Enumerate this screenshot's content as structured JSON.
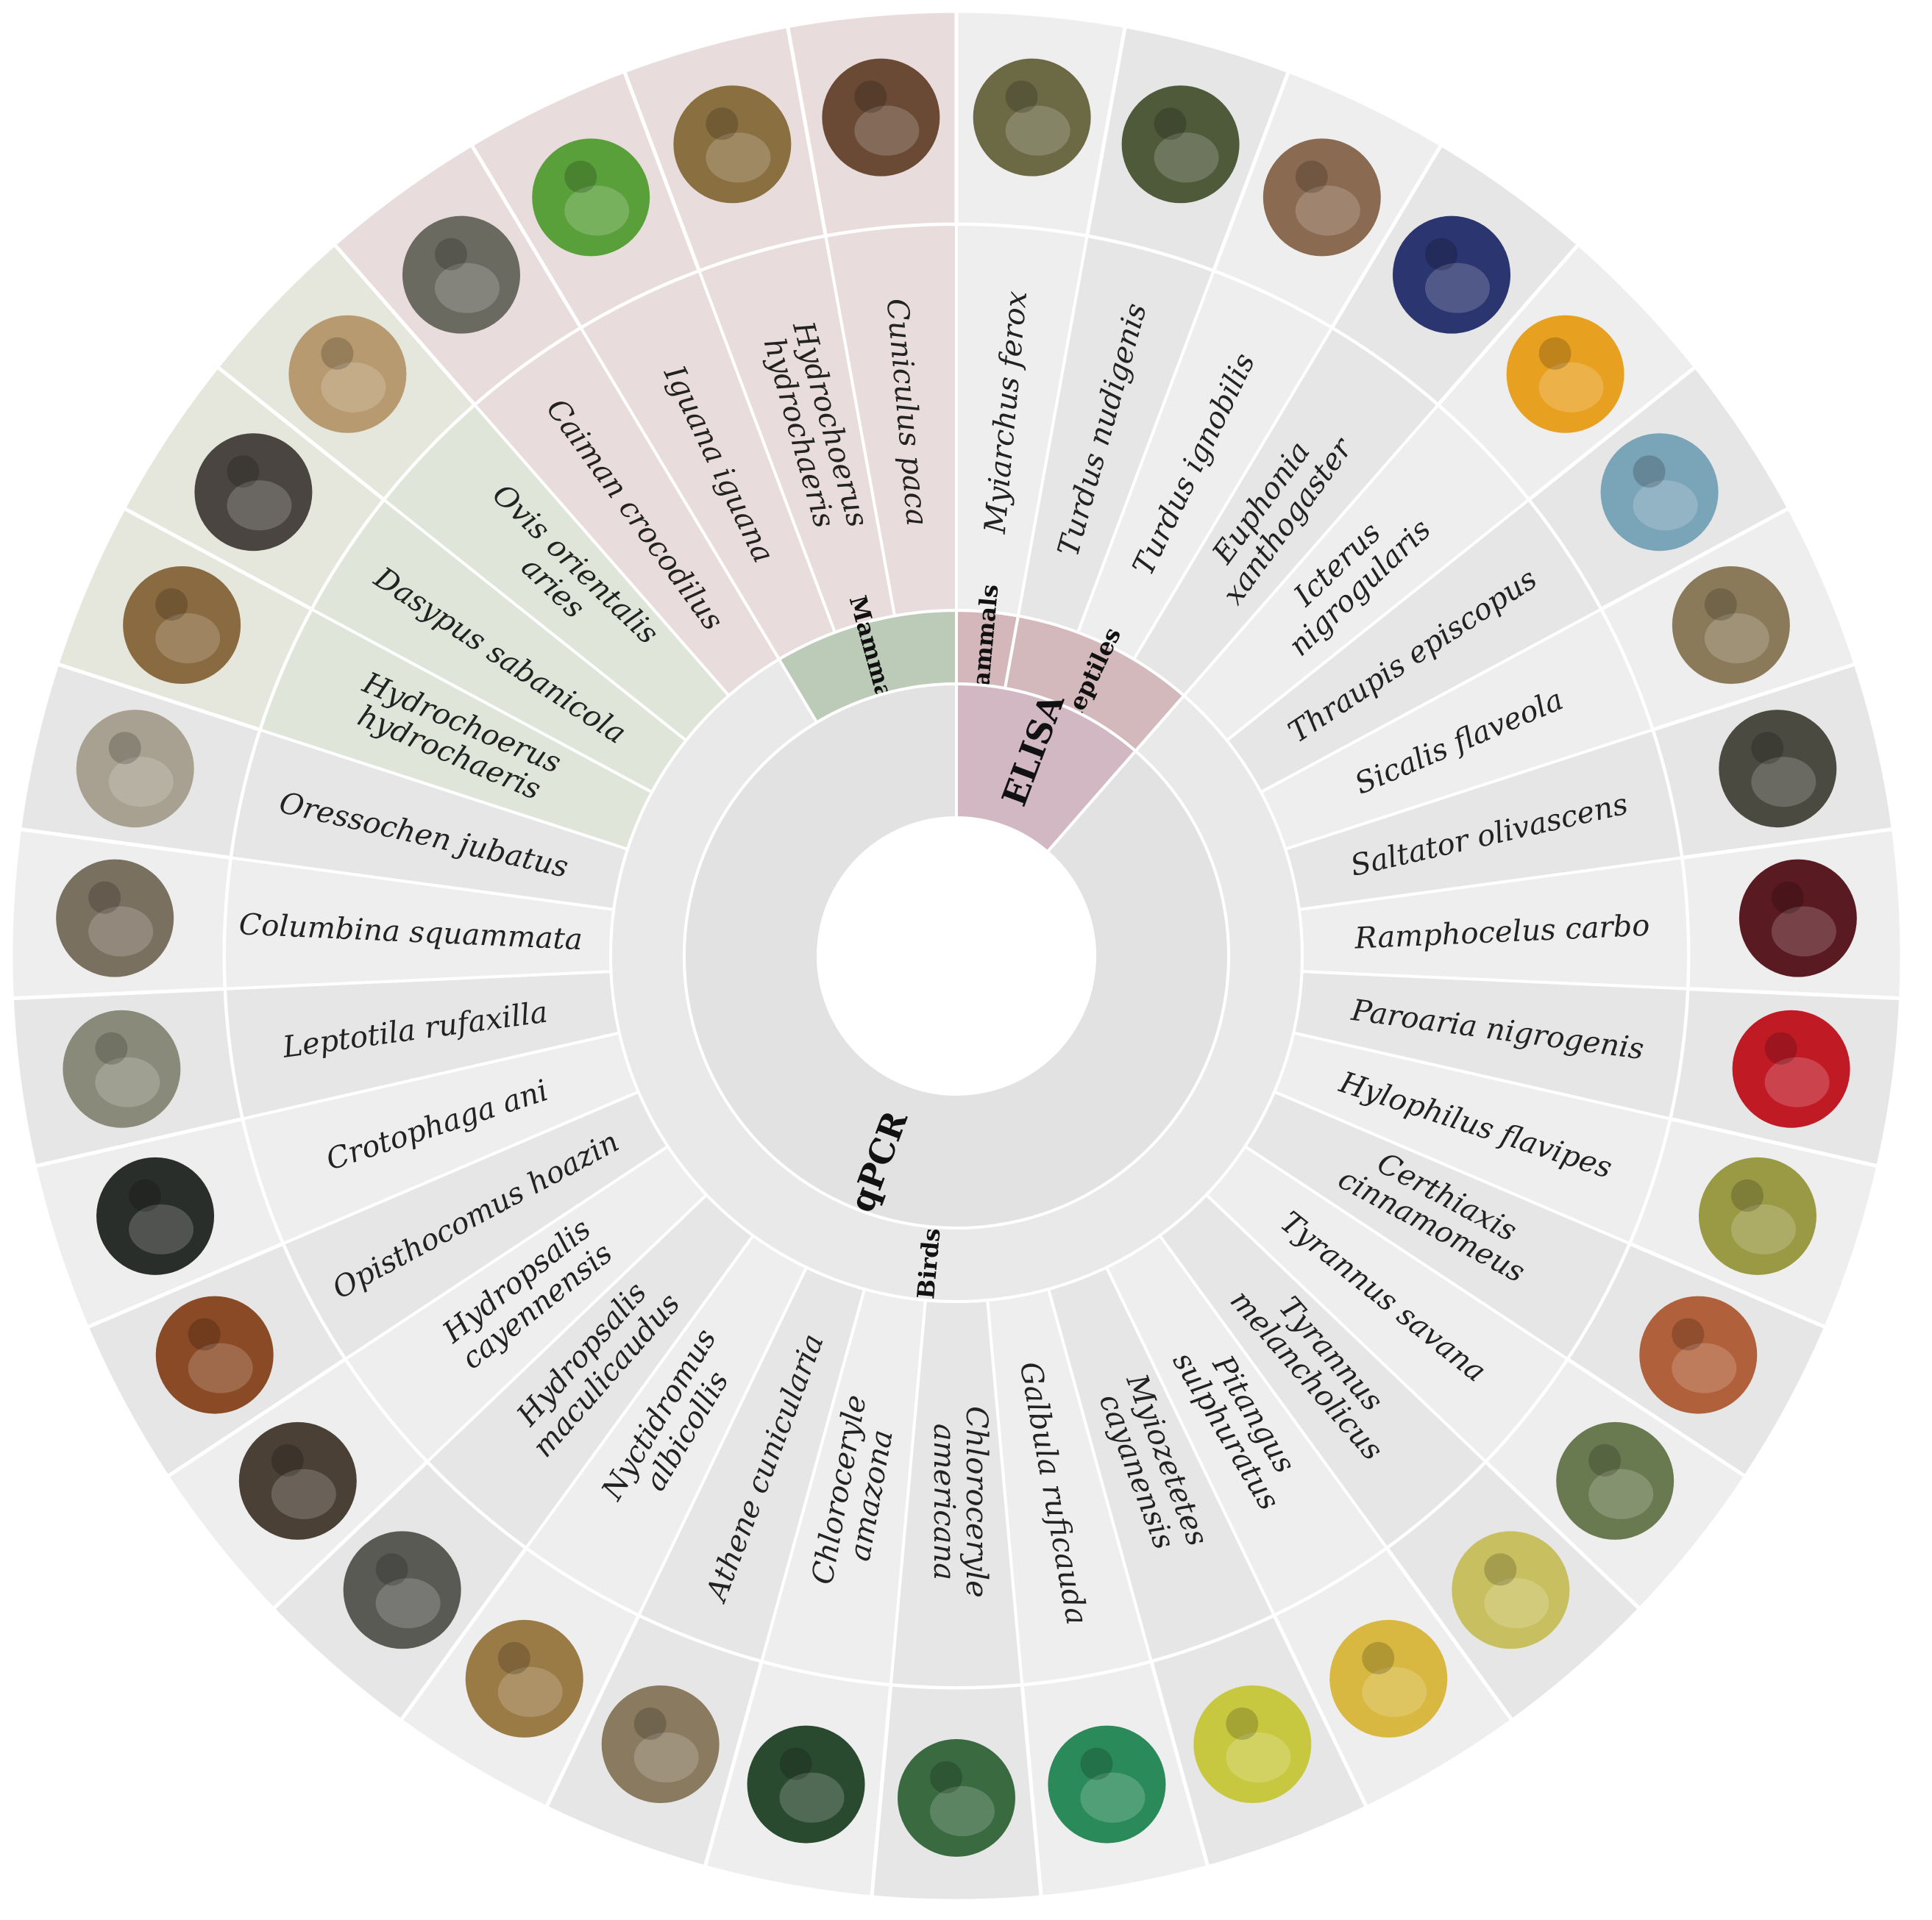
{
  "colors": {
    "ring_light": "#eeeeee",
    "ring_alt": "#e6e6e6",
    "reptile_outer": "#e9dcdc",
    "reptile_group": "#d4b9bc",
    "elisa_mammal_group": "#d3b7ba",
    "elisa_method": "#d2b8c2",
    "mammal_outer": "#e5e7dc",
    "mammal_mid": "#dfe5d8",
    "mammal_group": "#bccbb7",
    "birds_group": "#e9e9e9",
    "qpcr_method": "#e2e2e2",
    "separator": "#ffffff"
  },
  "methods": [
    {
      "label": "ELISA",
      "span": 4,
      "color_key": "elisa_method"
    },
    {
      "label": "qPCR",
      "span": 31,
      "color_key": "qpcr_method"
    }
  ],
  "groups": [
    {
      "label": "Mammals",
      "span": 1,
      "color_key": "elisa_mammal_group"
    },
    {
      "label": "Reptiles",
      "span": 3,
      "color_key": "reptile_group"
    },
    {
      "label": "Birds",
      "span": 28,
      "color_key": "birds_group"
    },
    {
      "label": "Mammals",
      "span": 3,
      "color_key": "mammal_group"
    }
  ],
  "species": [
    {
      "name": "Myiarchus ferox",
      "photo": "bird-photo-icon",
      "tint": "#6b6a45",
      "bg": "birds"
    },
    {
      "name": "Turdus nudigenis",
      "photo": "bird-photo-icon",
      "tint": "#4f5a3a",
      "bg": "birds"
    },
    {
      "name": "Turdus ignobilis",
      "photo": "bird-photo-icon",
      "tint": "#8a6a50",
      "bg": "birds"
    },
    {
      "name": "Euphonia xanthogaster",
      "photo": "bird-photo-icon",
      "tint": "#2b3570",
      "bg": "birds"
    },
    {
      "name": "Icterus nigrogularis",
      "photo": "bird-photo-icon",
      "tint": "#e8a020",
      "bg": "birds"
    },
    {
      "name": "Thraupis episcopus",
      "photo": "bird-photo-icon",
      "tint": "#7aa4b8",
      "bg": "birds"
    },
    {
      "name": "Sicalis flaveola",
      "photo": "bird-photo-icon",
      "tint": "#8a7a5a",
      "bg": "birds"
    },
    {
      "name": "Saltator olivascens",
      "photo": "bird-photo-icon",
      "tint": "#4a4a40",
      "bg": "birds"
    },
    {
      "name": "Ramphocelus carbo",
      "photo": "bird-photo-icon",
      "tint": "#5a1a22",
      "bg": "birds"
    },
    {
      "name": "Paroaria nigrogenis",
      "photo": "bird-photo-icon",
      "tint": "#c01a25",
      "bg": "birds"
    },
    {
      "name": "Hylophilus flavipes",
      "photo": "bird-photo-icon",
      "tint": "#9a9a45",
      "bg": "birds"
    },
    {
      "name": "Certhiaxis cinnamomeus",
      "photo": "bird-photo-icon",
      "tint": "#b0603a",
      "bg": "birds"
    },
    {
      "name": "Tyrannus savana",
      "photo": "bird-photo-icon",
      "tint": "#6a7a50",
      "bg": "birds"
    },
    {
      "name": "Tyrannus melancholicus",
      "photo": "bird-photo-icon",
      "tint": "#c8c060",
      "bg": "birds"
    },
    {
      "name": "Pitangus sulphuratus",
      "photo": "bird-photo-icon",
      "tint": "#d8b840",
      "bg": "birds"
    },
    {
      "name": "Myiozetetes cayanensis",
      "photo": "bird-photo-icon",
      "tint": "#c8c840",
      "bg": "birds"
    },
    {
      "name": "Galbula ruficauda",
      "photo": "bird-photo-icon",
      "tint": "#2a8a5a",
      "bg": "birds"
    },
    {
      "name": "Chloroceryle americana",
      "photo": "bird-photo-icon",
      "tint": "#3a6a40",
      "bg": "birds"
    },
    {
      "name": "Chloroceryle amazona",
      "photo": "bird-photo-icon",
      "tint": "#2a4a30",
      "bg": "birds"
    },
    {
      "name": "Athene cunicularia",
      "photo": "bird-photo-icon",
      "tint": "#8a7a60",
      "bg": "birds"
    },
    {
      "name": "Nyctidromus albicollis",
      "photo": "bird-photo-icon",
      "tint": "#9a7a45",
      "bg": "birds"
    },
    {
      "name": "Hydropsalis maculicaudus",
      "photo": "bird-photo-icon",
      "tint": "#5a5a55",
      "bg": "birds"
    },
    {
      "name": "Hydropsalis cayennensis",
      "photo": "bird-photo-icon",
      "tint": "#4a4035",
      "bg": "birds"
    },
    {
      "name": "Opisthocomus hoazin",
      "photo": "bird-photo-icon",
      "tint": "#8a4a25",
      "bg": "birds"
    },
    {
      "name": "Crotophaga ani",
      "photo": "bird-photo-icon",
      "tint": "#2a2e2a",
      "bg": "birds"
    },
    {
      "name": "Leptotila rufaxilla",
      "photo": "bird-photo-icon",
      "tint": "#8a8a7a",
      "bg": "birds"
    },
    {
      "name": "Columbina squammata",
      "photo": "bird-photo-icon",
      "tint": "#7a7060",
      "bg": "birds"
    },
    {
      "name": "Oressochen jubatus",
      "photo": "bird-photo-icon",
      "tint": "#a8a090",
      "bg": "birds"
    },
    {
      "name": "Hydrochoerus hydrochaeris",
      "photo": "mammal-photo-icon",
      "tint": "#8a6a40",
      "bg": "mammal"
    },
    {
      "name": "Dasypus sabanicola",
      "photo": "mammal-photo-icon",
      "tint": "#4a4540",
      "bg": "mammal"
    },
    {
      "name": "Ovis orientalis aries",
      "photo": "mammal-photo-icon",
      "tint": "#b89a70",
      "bg": "mammal"
    },
    {
      "name": "Caiman crocodilus",
      "photo": "reptile-photo-icon",
      "tint": "#6a6a60",
      "bg": "reptile"
    },
    {
      "name": "Iguana iguana",
      "photo": "reptile-photo-icon",
      "tint": "#5aa03a",
      "bg": "reptile"
    },
    {
      "name": "Hydrochoerus hydrochaeris",
      "photo": "mammal-photo-icon",
      "tint": "#8a7040",
      "bg": "reptile"
    },
    {
      "name": "Cuniculus paca",
      "photo": "mammal-photo-icon",
      "tint": "#6a4a35",
      "bg": "reptile"
    }
  ]
}
